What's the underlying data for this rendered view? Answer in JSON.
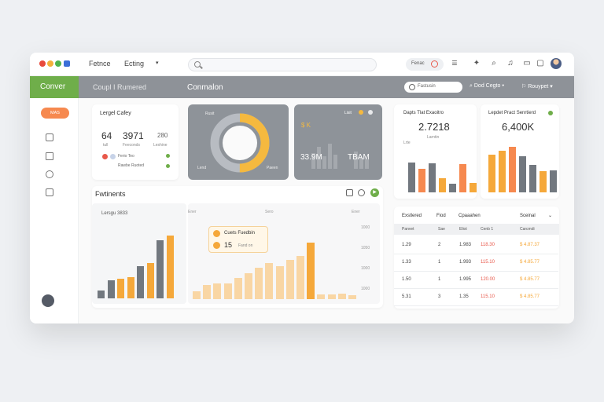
{
  "topbar": {
    "menu": [
      "Fetnce",
      "Ecting"
    ],
    "search_placeholder": "",
    "pill_label": "Fenac",
    "icons": [
      "window-dots-icon",
      "twitter-icon",
      "search-icon",
      "bell-icon",
      "message-icon",
      "avatar"
    ]
  },
  "header": {
    "brand": "Conver",
    "section": "Coupl I Rumered",
    "title": "Conmalon",
    "search_placeholder": "Fastusin",
    "menu": [
      "Dod Cegto",
      "Rouypet"
    ]
  },
  "sidebar": {
    "button_label": "MAS",
    "icons": [
      "home-icon",
      "document-icon",
      "tag-icon",
      "export-icon",
      "settings-icon"
    ]
  },
  "stat_card": {
    "title": "Lergel Cafey",
    "values": [
      "64",
      "3971",
      "280"
    ],
    "sublabels": [
      "tull",
      "Feeconds",
      "Leshine"
    ],
    "items": [
      "Ferio Teo",
      "Rawbe Ruoted"
    ]
  },
  "donut_card": {
    "label_top": "Rusit",
    "label_left": "Lend",
    "label_right": "Paeen",
    "fraction": 0.5
  },
  "mini_card": {
    "label": "Lisit",
    "value_left": "33.9M",
    "value_right": "TBAM",
    "badge": "$ K"
  },
  "kpi_1": {
    "title": "Dapts Tlat Exaoitro",
    "value": "2.7218",
    "sublabels": [
      "Lrte",
      "Larntin"
    ],
    "bar_values": [
      38,
      30,
      37,
      18,
      11,
      36,
      12
    ]
  },
  "kpi_2": {
    "title": "Lepdet Pract Senrtierd",
    "value": "6,400K",
    "bar_values": [
      48,
      53,
      58,
      46,
      35,
      27,
      28
    ]
  },
  "main_panel": {
    "title": "Fwtinents",
    "chart_label": "Lersgu 3833",
    "col_labels": [
      "Ener",
      "Sero",
      "Ener"
    ],
    "y_labels": [
      "1000",
      "1050",
      "1000",
      "1000"
    ],
    "left_bars": [
      10,
      23,
      25,
      27,
      41,
      45,
      74,
      80
    ],
    "right_bars": [
      10,
      18,
      20,
      20,
      27,
      33,
      40,
      46,
      42,
      50,
      55,
      72,
      6,
      6,
      7,
      5
    ],
    "tooltip": {
      "label": "Cuets Fuedbin",
      "value": "15",
      "sublabel": "Fand on"
    }
  },
  "table": {
    "headers": [
      "Exstlered",
      "Fiod",
      "Cpaaahen",
      "Sceinal"
    ],
    "subheaders": [
      "Panvet",
      "Sae",
      "Eliot",
      "Cenb 1",
      "Carcmdi"
    ],
    "rows": [
      {
        "a": "1.29",
        "b": "2",
        "c": "1.983",
        "d": "118.30",
        "e": "$ 4.87.37"
      },
      {
        "a": "1.33",
        "b": "1",
        "c": "1.993",
        "d": "115.10",
        "e": "$ 4.85.77"
      },
      {
        "a": "1.50",
        "b": "1",
        "c": "1.995",
        "d": "120.00",
        "e": "$ 4.85.77"
      },
      {
        "a": "5.31",
        "b": "3",
        "c": "1.35",
        "d": "115.10",
        "e": "$ 4.85.77"
      }
    ]
  },
  "colors": {
    "brand_green": "#6fae4a",
    "accent_orange": "#f6894f",
    "bar_dark": "#72787f",
    "bar_orange": "#f5a83a",
    "bar_light": "#f9d6a4",
    "panel_gray": "#8e9399",
    "negative_red": "#e8584a"
  }
}
